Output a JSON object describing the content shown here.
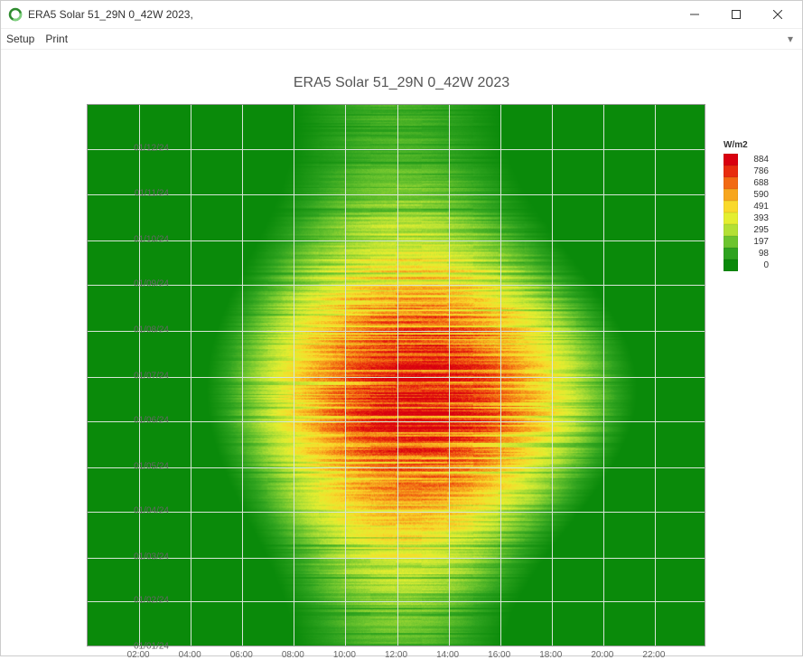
{
  "window": {
    "title": "ERA5 Solar 51_29N 0_42W 2023,",
    "icon_name": "app-icon"
  },
  "menus": {
    "items": [
      "Setup",
      "Print"
    ],
    "overflow_glyph": "▾"
  },
  "chart": {
    "title": "ERA5 Solar 51_29N 0_42W 2023",
    "title_fontsize": 16,
    "title_color": "#555555",
    "plot_background": "#0a8a0a",
    "frame_color": "#999999",
    "grid_color": "#d7e5d7",
    "tick_fontsize": 10,
    "tick_color": "#666666",
    "x": {
      "min_hour": 0,
      "max_hour": 24,
      "tick_hours": [
        2,
        4,
        6,
        8,
        10,
        12,
        14,
        16,
        18,
        20,
        22
      ],
      "tick_labels": [
        "02:00",
        "04:00",
        "06:00",
        "08:00",
        "10:00",
        "12:00",
        "14:00",
        "16:00",
        "18:00",
        "20:00",
        "22:00"
      ]
    },
    "y": {
      "tick_days": [
        0,
        31,
        60,
        91,
        121,
        152,
        182,
        213,
        244,
        274,
        305,
        335
      ],
      "tick_labels": [
        "01/01/24",
        "01/02/24",
        "01/03/24",
        "01/04/24",
        "01/05/24",
        "01/06/24",
        "01/07/24",
        "01/08/24",
        "01/09/24",
        "01/10/24",
        "01/11/24",
        "01/12/24"
      ],
      "total_days": 365
    },
    "legend": {
      "title": "W/m2",
      "stops": [
        {
          "value": 884,
          "color": "#d9000f"
        },
        {
          "value": 786,
          "color": "#e82c0e"
        },
        {
          "value": 688,
          "color": "#f26a13"
        },
        {
          "value": 590,
          "color": "#f7a61e"
        },
        {
          "value": 491,
          "color": "#f9d92b"
        },
        {
          "value": 393,
          "color": "#e4ee30"
        },
        {
          "value": 295,
          "color": "#b3e035"
        },
        {
          "value": 197,
          "color": "#6cc42e"
        },
        {
          "value": 98,
          "color": "#2fa31f"
        },
        {
          "value": 0,
          "color": "#0a8a0a"
        }
      ]
    },
    "heatmap": {
      "sunrise_sunset": {
        "jan": [
          8.0,
          16.2
        ],
        "jun": [
          4.6,
          21.4
        ]
      },
      "monthly_noon_peak_wm2": [
        170,
        260,
        400,
        550,
        720,
        860,
        830,
        760,
        580,
        380,
        220,
        150
      ],
      "monthly_cloud_variance": [
        0.55,
        0.55,
        0.55,
        0.5,
        0.45,
        0.4,
        0.38,
        0.4,
        0.48,
        0.55,
        0.58,
        0.58
      ],
      "noise_seed": 20230101
    }
  }
}
